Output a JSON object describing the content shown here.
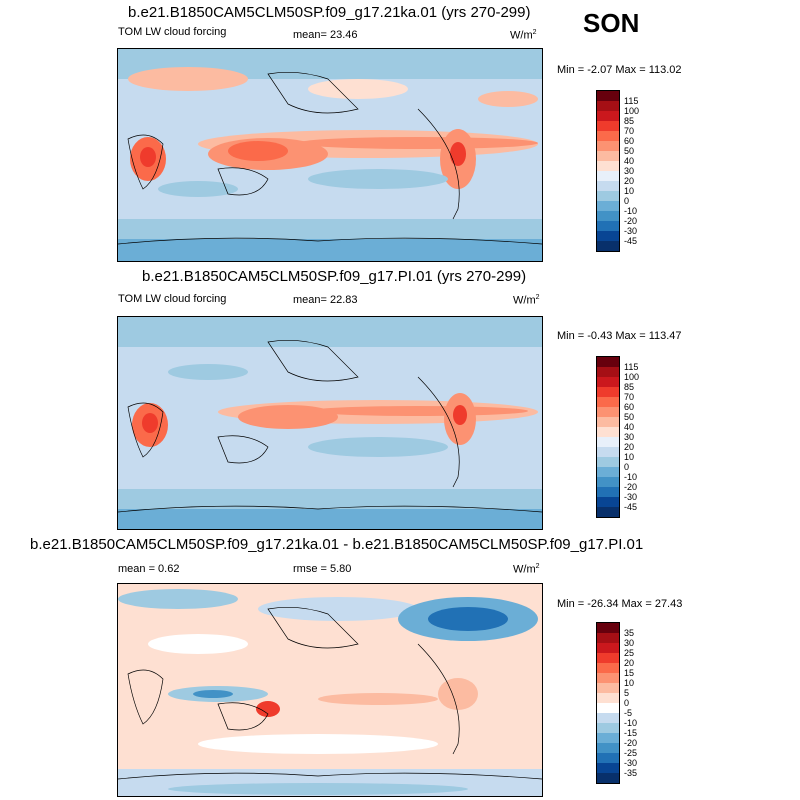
{
  "season": "SON",
  "panels": [
    {
      "title": "b.e21.B1850CAM5CLM50SP.f09_g17.21ka.01 (yrs 270-299)",
      "left_label": "TOM LW cloud forcing",
      "mean_text": "mean=  23.46",
      "units": "W/m",
      "units_sup": "2",
      "minmax": "Min =  -2.07 Max = 113.02",
      "levels": [
        "115",
        "100",
        "85",
        "70",
        "60",
        "50",
        "40",
        "30",
        "20",
        "10",
        "0",
        "-10",
        "-20",
        "-30",
        "-45"
      ],
      "colors": [
        "#67000d",
        "#a50f15",
        "#cb181d",
        "#ef3b2c",
        "#fb6a4a",
        "#fc9272",
        "#fcbba1",
        "#fee0d2",
        "#e8f0fa",
        "#c6dbef",
        "#9ecae1",
        "#6baed6",
        "#4292c6",
        "#2171b5",
        "#084594",
        "#08306b"
      ]
    },
    {
      "title": "b.e21.B1850CAM5CLM50SP.f09_g17.PI.01 (yrs 270-299)",
      "left_label": "TOM LW cloud forcing",
      "mean_text": "mean=  22.83",
      "units": "W/m",
      "units_sup": "2",
      "minmax": "Min =  -0.43 Max = 113.47",
      "levels": [
        "115",
        "100",
        "85",
        "70",
        "60",
        "50",
        "40",
        "30",
        "20",
        "10",
        "0",
        "-10",
        "-20",
        "-30",
        "-45"
      ],
      "colors": [
        "#67000d",
        "#a50f15",
        "#cb181d",
        "#ef3b2c",
        "#fb6a4a",
        "#fc9272",
        "#fcbba1",
        "#fee0d2",
        "#e8f0fa",
        "#c6dbef",
        "#9ecae1",
        "#6baed6",
        "#4292c6",
        "#2171b5",
        "#084594",
        "#08306b"
      ]
    },
    {
      "title": "b.e21.B1850CAM5CLM50SP.f09_g17.21ka.01 - b.e21.B1850CAM5CLM50SP.f09_g17.PI.01",
      "left_label": "mean =   0.62",
      "mean_text": "rmse =   5.80",
      "units": "W/m",
      "units_sup": "2",
      "minmax": "Min = -26.34 Max =  27.43",
      "levels": [
        "35",
        "30",
        "25",
        "20",
        "15",
        "10",
        "5",
        "0",
        "-5",
        "-10",
        "-15",
        "-20",
        "-25",
        "-30",
        "-35"
      ],
      "colors": [
        "#67000d",
        "#a50f15",
        "#cb181d",
        "#ef3b2c",
        "#fb6a4a",
        "#fc9272",
        "#fcbba1",
        "#fee0d2",
        "#ffffff",
        "#c6dbef",
        "#9ecae1",
        "#6baed6",
        "#4292c6",
        "#2171b5",
        "#084594",
        "#08306b"
      ]
    }
  ]
}
